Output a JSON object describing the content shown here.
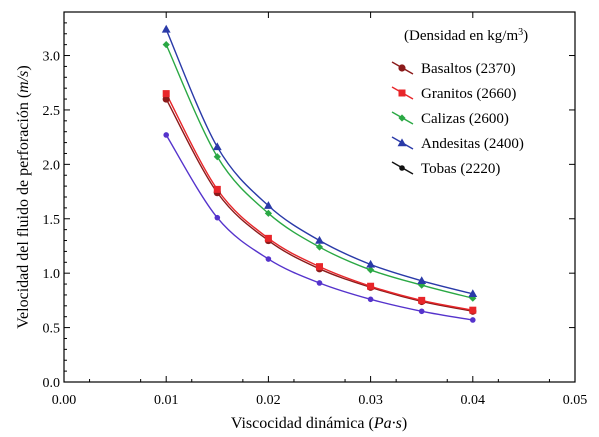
{
  "chart_data": {
    "type": "line",
    "title": "",
    "xlabel_main": "Viscocidad dinámica (",
    "xlabel_unit": "Pa·s",
    "xlabel_end": ")",
    "ylabel_main": "Velocidad del fluido de perforación (",
    "ylabel_unit": "m/s",
    "ylabel_end": ")",
    "xlim": [
      0.0,
      0.05
    ],
    "ylim": [
      0.0,
      3.4
    ],
    "x_ticks": [
      "0.00",
      "0.01",
      "0.02",
      "0.03",
      "0.04",
      "0.05"
    ],
    "y_ticks": [
      "0.0",
      "0.5",
      "1.0",
      "1.5",
      "2.0",
      "2.5",
      "3.0"
    ],
    "x_tick_values": [
      0.0,
      0.01,
      0.02,
      0.03,
      0.04,
      0.05
    ],
    "y_tick_values": [
      0.0,
      0.5,
      1.0,
      1.5,
      2.0,
      2.5,
      3.0
    ],
    "grid": false,
    "legend_position": "top-right",
    "legend_title": "(Densidad en kg/m",
    "legend_title_sup": "3",
    "legend_title_end": ")",
    "x": [
      0.01,
      0.015,
      0.02,
      0.025,
      0.03,
      0.035,
      0.04
    ],
    "series": [
      {
        "name": "Basaltos (2370)",
        "color": "#8b1a1a",
        "marker": "circle",
        "values": [
          2.6,
          1.74,
          1.3,
          1.04,
          0.87,
          0.74,
          0.65
        ]
      },
      {
        "name": "Granitos (2660)",
        "color": "#e8262a",
        "marker": "square",
        "values": [
          2.65,
          1.77,
          1.32,
          1.06,
          0.88,
          0.75,
          0.66
        ]
      },
      {
        "name": "Calizas (2600)",
        "color": "#2aa844",
        "marker": "diamond",
        "values": [
          3.1,
          2.07,
          1.55,
          1.24,
          1.03,
          0.89,
          0.77
        ]
      },
      {
        "name": "Andesitas (2400)",
        "color": "#2a3aa8",
        "marker": "triangle",
        "values": [
          3.24,
          2.16,
          1.62,
          1.3,
          1.08,
          0.93,
          0.81
        ]
      },
      {
        "name": "Tobas (2220)",
        "color": "#5533cc",
        "marker": "dot",
        "values": [
          2.27,
          1.51,
          1.13,
          0.91,
          0.76,
          0.65,
          0.57
        ],
        "legend_color": "#111111"
      }
    ]
  }
}
